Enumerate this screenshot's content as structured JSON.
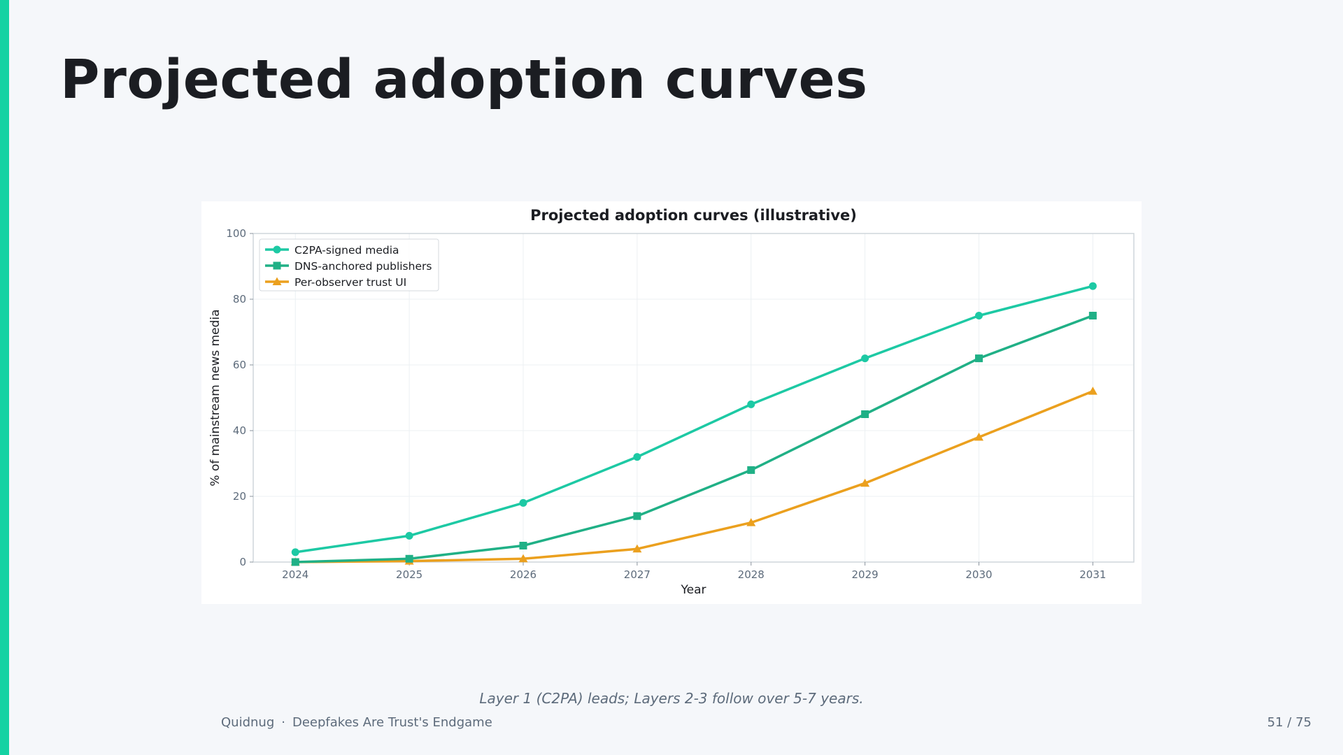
{
  "slide": {
    "title": "Projected adoption curves",
    "caption": "Layer 1 (C2PA) leads; Layers 2-3 follow over 5-7 years.",
    "footer_brand": "Quidnug",
    "footer_separator": "·",
    "footer_deck": "Deepfakes Are Trust's Endgame",
    "page_indicator": "51 / 75",
    "accent_color": "#14d2a3"
  },
  "chart_data": {
    "type": "line",
    "title": "Projected adoption curves (illustrative)",
    "xlabel": "Year",
    "ylabel": "% of mainstream news media",
    "x": [
      2024,
      2025,
      2026,
      2027,
      2028,
      2029,
      2030,
      2031
    ],
    "xlim": [
      2023.63,
      2031.36
    ],
    "ylim": [
      0,
      100
    ],
    "yticks": [
      0,
      20,
      40,
      60,
      80,
      100
    ],
    "grid": true,
    "legend_position": "top-left",
    "series": [
      {
        "name": "C2PA-signed media",
        "values": [
          3,
          8,
          18,
          32,
          48,
          62,
          75,
          84
        ],
        "color": "#1dc9a4",
        "marker": "circle"
      },
      {
        "name": "DNS-anchored publishers",
        "values": [
          0,
          1,
          5,
          14,
          28,
          45,
          62,
          75
        ],
        "color": "#20b086",
        "marker": "square"
      },
      {
        "name": "Per-observer trust UI",
        "values": [
          0,
          0.3,
          1,
          4,
          12,
          24,
          38,
          52
        ],
        "color": "#eba01e",
        "marker": "triangle"
      }
    ]
  }
}
